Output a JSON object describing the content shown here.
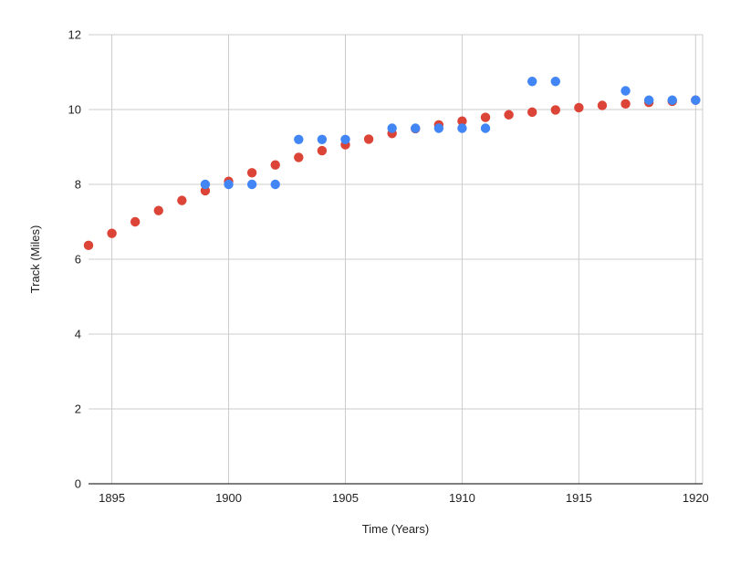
{
  "chart_data": {
    "type": "scatter",
    "title": "",
    "xlabel": "Time (Years)",
    "ylabel": "Track (Miles)",
    "xlim": [
      1894,
      1920.3
    ],
    "ylim": [
      0,
      12
    ],
    "x_ticks": [
      "1895",
      "1900",
      "1905",
      "1910",
      "1915",
      "1920"
    ],
    "y_ticks": [
      "0",
      "2",
      "4",
      "6",
      "8",
      "10",
      "12"
    ],
    "grid": true,
    "legend": "none",
    "series": [
      {
        "color": "#4285f4",
        "points": [
          [
            1899,
            8.0
          ],
          [
            1900,
            8.0
          ],
          [
            1901,
            8.0
          ],
          [
            1902,
            8.0
          ],
          [
            1903,
            9.2
          ],
          [
            1904,
            9.2
          ],
          [
            1905,
            9.2
          ],
          [
            1907,
            9.5
          ],
          [
            1908,
            9.5
          ],
          [
            1909,
            9.5
          ],
          [
            1910,
            9.5
          ],
          [
            1911,
            9.5
          ],
          [
            1913,
            10.75
          ],
          [
            1914,
            10.75
          ],
          [
            1917,
            10.5
          ],
          [
            1918,
            10.25
          ],
          [
            1919,
            10.25
          ],
          [
            1920,
            10.25
          ]
        ]
      },
      {
        "color": "#db4437",
        "points": [
          [
            1894,
            6.37
          ],
          [
            1895,
            6.69
          ],
          [
            1896,
            7.0
          ],
          [
            1897,
            7.3
          ],
          [
            1898,
            7.57
          ],
          [
            1899,
            7.83
          ],
          [
            1900,
            8.08
          ],
          [
            1901,
            8.31
          ],
          [
            1902,
            8.52
          ],
          [
            1903,
            8.72
          ],
          [
            1904,
            8.9
          ],
          [
            1905,
            9.06
          ],
          [
            1906,
            9.21
          ],
          [
            1907,
            9.36
          ],
          [
            1908,
            9.49
          ],
          [
            1909,
            9.59
          ],
          [
            1910,
            9.69
          ],
          [
            1911,
            9.79
          ],
          [
            1912,
            9.86
          ],
          [
            1913,
            9.93
          ],
          [
            1914,
            9.99
          ],
          [
            1915,
            10.05
          ],
          [
            1916,
            10.11
          ],
          [
            1917,
            10.15
          ],
          [
            1918,
            10.19
          ],
          [
            1919,
            10.22
          ],
          [
            1920,
            10.25
          ]
        ]
      }
    ]
  }
}
